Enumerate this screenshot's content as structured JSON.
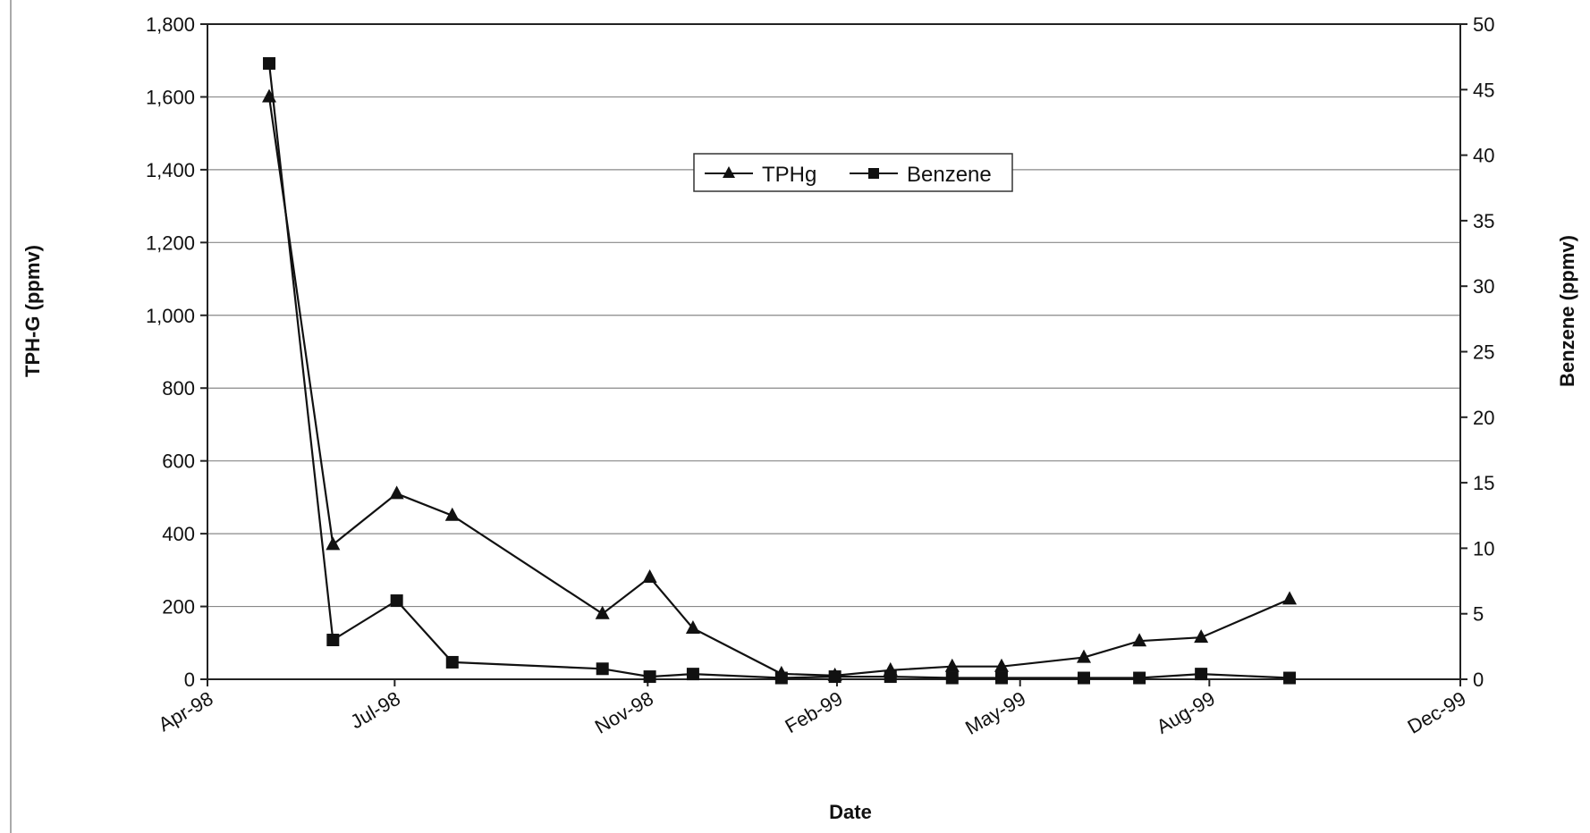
{
  "chart_data": {
    "type": "line",
    "title": "",
    "xlabel": "Date",
    "ylabel_left": "TPH-G (ppmv)",
    "ylabel_right": "Benzene (ppmv)",
    "x_ticks": [
      "Apr-98",
      "Jul-98",
      "Nov-98",
      "Feb-99",
      "May-99",
      "Aug-99",
      "Dec-99"
    ],
    "x_tick_dates": [
      "1998-04-01",
      "1998-07-01",
      "1998-11-01",
      "1999-02-01",
      "1999-05-01",
      "1999-08-01",
      "1999-12-01"
    ],
    "xlim": [
      "1998-04-01",
      "1999-12-01"
    ],
    "ylim_left": [
      0,
      1800
    ],
    "ylim_right": [
      0,
      50
    ],
    "y_ticks_left": [
      "0",
      "200",
      "400",
      "600",
      "800",
      "1,000",
      "1,200",
      "1,400",
      "1,600",
      "1,800"
    ],
    "y_ticks_right": [
      "0",
      "5",
      "10",
      "15",
      "20",
      "25",
      "30",
      "35",
      "40",
      "45",
      "50"
    ],
    "grid": true,
    "legend_position": "top-center",
    "series": [
      {
        "name": "TPHg",
        "axis": "left",
        "marker": "triangle",
        "color": "#111111",
        "points": [
          {
            "x": "1998-05-01",
            "y": 1600
          },
          {
            "x": "1998-06-01",
            "y": 370
          },
          {
            "x": "1998-07-02",
            "y": 510
          },
          {
            "x": "1998-07-29",
            "y": 450
          },
          {
            "x": "1998-10-10",
            "y": 180
          },
          {
            "x": "1998-11-02",
            "y": 280
          },
          {
            "x": "1998-11-23",
            "y": 140
          },
          {
            "x": "1999-01-05",
            "y": 15
          },
          {
            "x": "1999-01-31",
            "y": 10
          },
          {
            "x": "1999-02-27",
            "y": 25
          },
          {
            "x": "1999-03-29",
            "y": 35
          },
          {
            "x": "1999-04-22",
            "y": 35
          },
          {
            "x": "1999-06-01",
            "y": 60
          },
          {
            "x": "1999-06-28",
            "y": 105
          },
          {
            "x": "1999-07-28",
            "y": 115
          },
          {
            "x": "1999-09-09",
            "y": 220
          }
        ]
      },
      {
        "name": "Benzene",
        "axis": "right",
        "marker": "square",
        "color": "#111111",
        "points": [
          {
            "x": "1998-05-01",
            "y": 47
          },
          {
            "x": "1998-06-01",
            "y": 3
          },
          {
            "x": "1998-07-02",
            "y": 6
          },
          {
            "x": "1998-07-29",
            "y": 1.3
          },
          {
            "x": "1998-10-10",
            "y": 0.8
          },
          {
            "x": "1998-11-02",
            "y": 0.2
          },
          {
            "x": "1998-11-23",
            "y": 0.4
          },
          {
            "x": "1999-01-05",
            "y": 0.1
          },
          {
            "x": "1999-01-31",
            "y": 0.2
          },
          {
            "x": "1999-02-27",
            "y": 0.2
          },
          {
            "x": "1999-03-29",
            "y": 0.1
          },
          {
            "x": "1999-04-22",
            "y": 0.1
          },
          {
            "x": "1999-06-01",
            "y": 0.1
          },
          {
            "x": "1999-06-28",
            "y": 0.1
          },
          {
            "x": "1999-07-28",
            "y": 0.4
          },
          {
            "x": "1999-09-09",
            "y": 0.1
          }
        ]
      }
    ]
  }
}
